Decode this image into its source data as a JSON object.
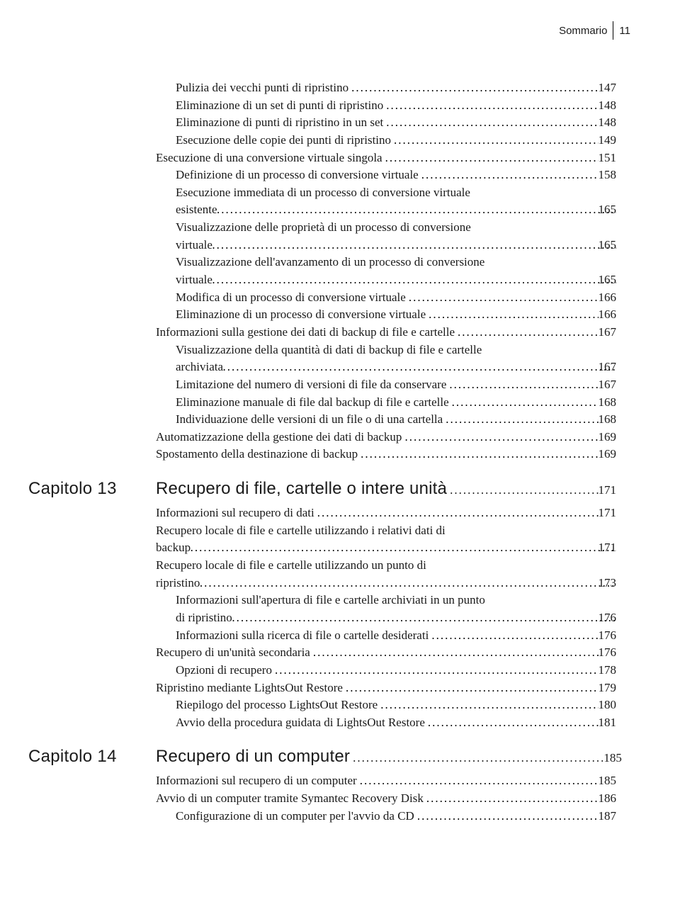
{
  "header": {
    "label": "Sommario",
    "page": "11"
  },
  "block1_simple": [
    {
      "title": "Pulizia dei vecchi punti di ripristino",
      "page": "147",
      "level": 1
    },
    {
      "title": "Eliminazione di un set di punti di ripristino",
      "page": "148",
      "level": 1
    },
    {
      "title": "Eliminazione di punti di ripristino in un set",
      "page": "148",
      "level": 1
    },
    {
      "title": "Esecuzione delle copie dei punti di ripristino",
      "page": "149",
      "level": 1
    },
    {
      "title": "Esecuzione di una conversione virtuale singola",
      "page": "151",
      "level": 0
    },
    {
      "title": "Definizione di un processo di conversione virtuale",
      "page": "158",
      "level": 1
    }
  ],
  "block1_multi1": {
    "lines": [
      "Esecuzione immediata di un processo di conversione virtuale"
    ],
    "last_line": "esistente",
    "page": "165",
    "level": 1
  },
  "block1_multi2": {
    "lines": [
      "Visualizzazione delle proprietà di un processo di conversione"
    ],
    "last_line": "virtuale",
    "page": "165",
    "level": 1
  },
  "block1_multi3": {
    "lines": [
      "Visualizzazione dell'avanzamento di un processo di conversione"
    ],
    "last_line": "virtuale",
    "page": "165",
    "level": 1
  },
  "block1_simple2": [
    {
      "title": "Modifica di un processo di conversione virtuale",
      "page": "166",
      "level": 1
    },
    {
      "title": "Eliminazione di un processo di conversione virtuale",
      "page": "166",
      "level": 1
    },
    {
      "title": "Informazioni sulla gestione dei dati di backup di file e cartelle",
      "page": "167",
      "level": 0
    }
  ],
  "block1_multi4": {
    "lines": [
      "Visualizzazione della quantità di dati di backup di file e cartelle"
    ],
    "last_line": "archiviata",
    "page": "167",
    "level": 1
  },
  "block1_simple3": [
    {
      "title": "Limitazione del numero di versioni di file da conservare",
      "page": "167",
      "level": 1
    },
    {
      "title": "Eliminazione manuale di file dal backup di file e cartelle",
      "page": "168",
      "level": 1
    },
    {
      "title": "Individuazione delle versioni di un file o di una cartella",
      "page": "168",
      "level": 1
    },
    {
      "title": "Automatizzazione della gestione dei dati di backup",
      "page": "169",
      "level": 0
    },
    {
      "title": "Spostamento della destinazione di backup",
      "page": "169",
      "level": 0
    }
  ],
  "chapter13": {
    "label": "Capitolo 13",
    "title": "Recupero di file, cartelle o intere unità",
    "page": "171"
  },
  "block2_simple": [
    {
      "title": "Informazioni sul recupero di dati",
      "page": "171",
      "level": 0
    }
  ],
  "block2_multi1": {
    "lines": [
      "Recupero locale di file e cartelle utilizzando i relativi dati di"
    ],
    "last_line": "backup",
    "page": "171",
    "level": 0
  },
  "block2_multi2": {
    "lines": [
      "Recupero locale di file e cartelle utilizzando un punto di"
    ],
    "last_line": "ripristino",
    "page": "173",
    "level": 0
  },
  "block2_multi3": {
    "lines": [
      "Informazioni sull'apertura di file e cartelle archiviati in un punto"
    ],
    "last_line": "di ripristino",
    "page": "176",
    "level": 1
  },
  "block2_simple2": [
    {
      "title": "Informazioni sulla ricerca di file o cartelle desiderati",
      "page": "176",
      "level": 1
    },
    {
      "title": "Recupero di un'unità secondaria",
      "page": "176",
      "level": 0
    },
    {
      "title": "Opzioni di recupero",
      "page": "178",
      "level": 1
    },
    {
      "title": "Ripristino mediante LightsOut Restore",
      "page": "179",
      "level": 0
    },
    {
      "title": "Riepilogo del processo LightsOut Restore",
      "page": "180",
      "level": 1
    },
    {
      "title": "Avvio della procedura guidata di LightsOut Restore",
      "page": "181",
      "level": 1
    }
  ],
  "chapter14": {
    "label": "Capitolo 14",
    "title": "Recupero di un computer",
    "page": "185"
  },
  "block3": [
    {
      "title": "Informazioni sul recupero di un computer",
      "page": "185",
      "level": 0
    },
    {
      "title": "Avvio di un computer tramite Symantec Recovery Disk",
      "page": "186",
      "level": 0
    },
    {
      "title": "Configurazione di un computer per l'avvio da CD",
      "page": "187",
      "level": 1
    }
  ]
}
